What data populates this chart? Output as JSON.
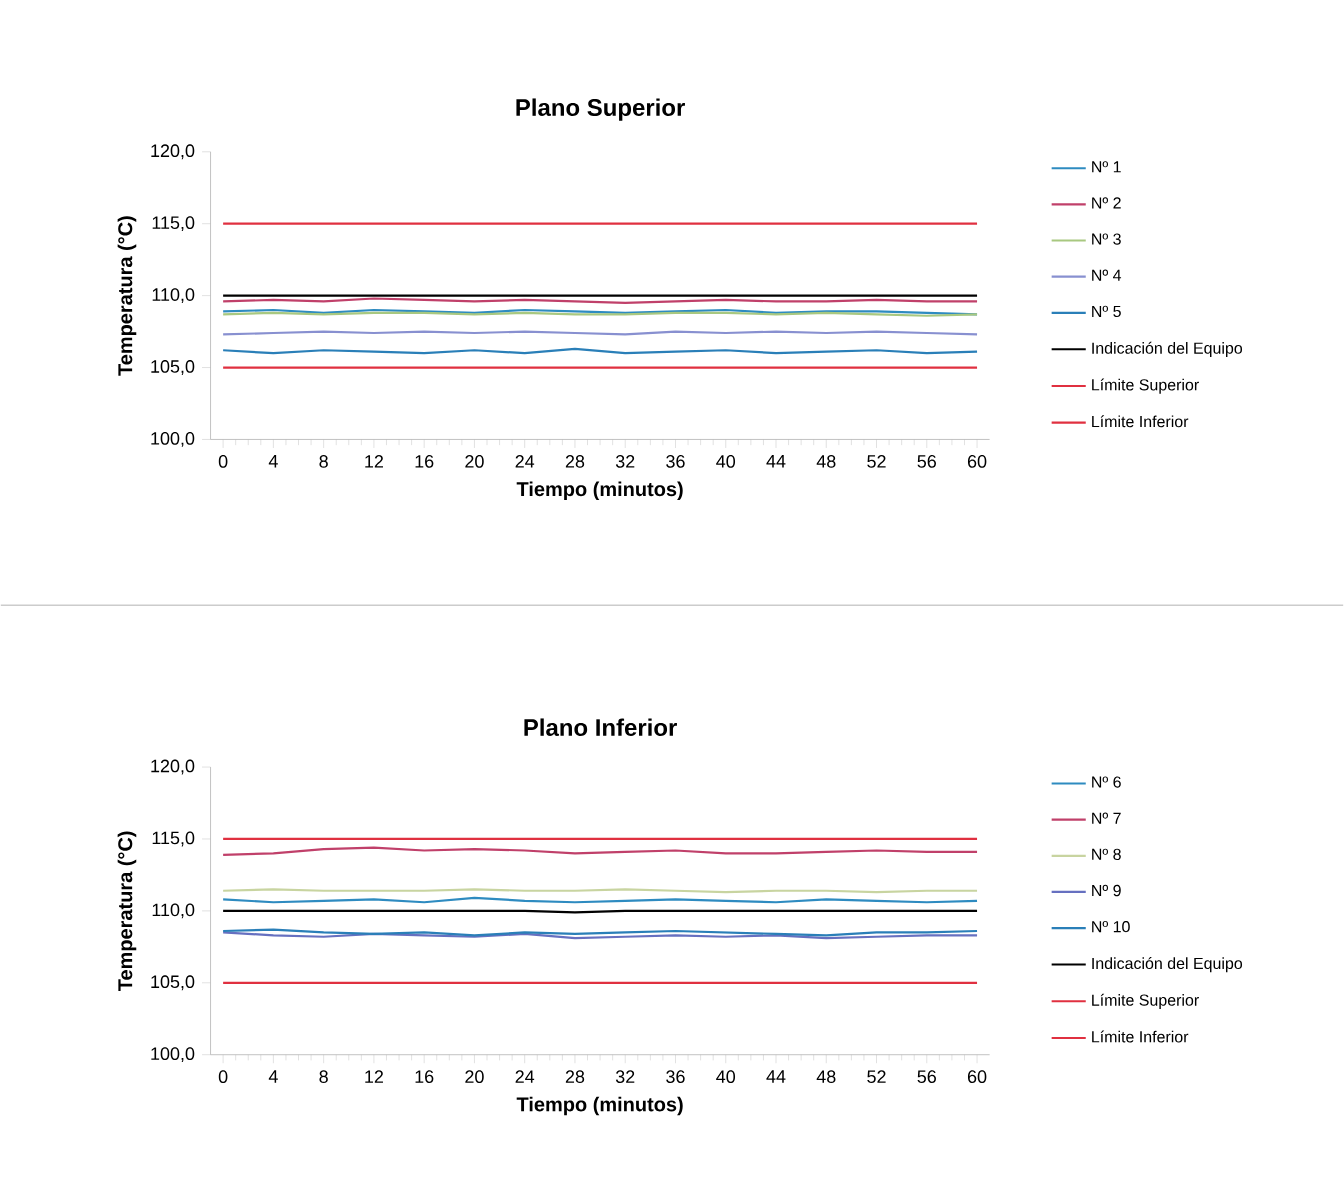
{
  "chart_data": [
    {
      "type": "line",
      "title": "Plano Superior",
      "xlabel": "Tiempo (minutos)",
      "ylabel": "Temperatura (°C)",
      "legend": "right",
      "marker": "none",
      "line_style": "solid",
      "x": [
        0,
        4,
        8,
        12,
        16,
        20,
        24,
        28,
        32,
        36,
        40,
        44,
        48,
        52,
        56,
        60
      ],
      "xlim": [
        -1,
        61
      ],
      "xticks": [
        0,
        4,
        8,
        12,
        16,
        20,
        24,
        28,
        32,
        36,
        40,
        44,
        48,
        52,
        56,
        60
      ],
      "ylim": [
        100,
        120
      ],
      "yticks": [
        {
          "value": 100,
          "label": "100,0"
        },
        {
          "value": 105,
          "label": "105,0"
        },
        {
          "value": 110,
          "label": "110,0"
        },
        {
          "value": 115,
          "label": "115,0"
        },
        {
          "value": 120,
          "label": "120,0"
        }
      ],
      "series": [
        {
          "name": "Nº 1",
          "color": "#2e8bc0",
          "values": [
            108.9,
            109.0,
            108.8,
            109.0,
            108.9,
            108.8,
            109.0,
            108.9,
            108.8,
            108.9,
            109.0,
            108.8,
            108.9,
            108.9,
            108.8,
            108.7
          ]
        },
        {
          "name": "Nº 2",
          "color": "#c0406a",
          "values": [
            109.6,
            109.7,
            109.6,
            109.8,
            109.7,
            109.6,
            109.7,
            109.6,
            109.5,
            109.6,
            109.7,
            109.6,
            109.6,
            109.7,
            109.6,
            109.6
          ]
        },
        {
          "name": "Nº 3",
          "color": "#a8c880",
          "values": [
            108.7,
            108.8,
            108.7,
            108.8,
            108.8,
            108.7,
            108.8,
            108.7,
            108.7,
            108.8,
            108.8,
            108.7,
            108.8,
            108.7,
            108.6,
            108.7
          ]
        },
        {
          "name": "Nº 4",
          "color": "#8890d0",
          "values": [
            107.3,
            107.4,
            107.5,
            107.4,
            107.5,
            107.4,
            107.5,
            107.4,
            107.3,
            107.5,
            107.4,
            107.5,
            107.4,
            107.5,
            107.4,
            107.3
          ]
        },
        {
          "name": "Nº 5",
          "color": "#2a7fb8",
          "values": [
            106.2,
            106.0,
            106.2,
            106.1,
            106.0,
            106.2,
            106.0,
            106.3,
            106.0,
            106.1,
            106.2,
            106.0,
            106.1,
            106.2,
            106.0,
            106.1
          ]
        },
        {
          "name": "Indicación del Equipo",
          "color": "#000000",
          "values": [
            110,
            110,
            110,
            110,
            110,
            110,
            110,
            110,
            110,
            110,
            110,
            110,
            110,
            110,
            110,
            110
          ]
        },
        {
          "name": "Límite Superior",
          "color": "#e03040",
          "values": [
            115,
            115,
            115,
            115,
            115,
            115,
            115,
            115,
            115,
            115,
            115,
            115,
            115,
            115,
            115,
            115
          ]
        },
        {
          "name": "Límite Inferior",
          "color": "#e03040",
          "values": [
            105,
            105,
            105,
            105,
            105,
            105,
            105,
            105,
            105,
            105,
            105,
            105,
            105,
            105,
            105,
            105
          ]
        }
      ]
    },
    {
      "type": "line",
      "title": "Plano Inferior",
      "xlabel": "Tiempo (minutos)",
      "ylabel": "Temperatura (°C)",
      "legend": "right",
      "marker": "none",
      "line_style": "solid",
      "x": [
        0,
        4,
        8,
        12,
        16,
        20,
        24,
        28,
        32,
        36,
        40,
        44,
        48,
        52,
        56,
        60
      ],
      "xlim": [
        -1,
        61
      ],
      "xticks": [
        0,
        4,
        8,
        12,
        16,
        20,
        24,
        28,
        32,
        36,
        40,
        44,
        48,
        52,
        56,
        60
      ],
      "ylim": [
        100,
        120
      ],
      "yticks": [
        {
          "value": 100,
          "label": "100,0"
        },
        {
          "value": 105,
          "label": "105,0"
        },
        {
          "value": 110,
          "label": "110,0"
        },
        {
          "value": 115,
          "label": "115,0"
        },
        {
          "value": 120,
          "label": "120,0"
        }
      ],
      "series": [
        {
          "name": "Nº 6",
          "color": "#2e8bc0",
          "values": [
            110.8,
            110.6,
            110.7,
            110.8,
            110.6,
            110.9,
            110.7,
            110.6,
            110.7,
            110.8,
            110.7,
            110.6,
            110.8,
            110.7,
            110.6,
            110.7
          ]
        },
        {
          "name": "Nº 7",
          "color": "#c0406a",
          "values": [
            113.9,
            114.0,
            114.3,
            114.4,
            114.2,
            114.3,
            114.2,
            114.0,
            114.1,
            114.2,
            114.0,
            114.0,
            114.1,
            114.2,
            114.1,
            114.1
          ]
        },
        {
          "name": "Nº 8",
          "color": "#c8d4a0",
          "values": [
            111.4,
            111.5,
            111.4,
            111.4,
            111.4,
            111.5,
            111.4,
            111.4,
            111.5,
            111.4,
            111.3,
            111.4,
            111.4,
            111.3,
            111.4,
            111.4
          ]
        },
        {
          "name": "Nº 9",
          "color": "#6670c0",
          "values": [
            108.5,
            108.3,
            108.2,
            108.4,
            108.3,
            108.2,
            108.4,
            108.1,
            108.2,
            108.3,
            108.2,
            108.3,
            108.1,
            108.2,
            108.3,
            108.3
          ]
        },
        {
          "name": "Nº 10",
          "color": "#2a7fb8",
          "values": [
            108.6,
            108.7,
            108.5,
            108.4,
            108.5,
            108.3,
            108.5,
            108.4,
            108.5,
            108.6,
            108.5,
            108.4,
            108.3,
            108.5,
            108.5,
            108.6
          ]
        },
        {
          "name": "Indicación del Equipo",
          "color": "#000000",
          "values": [
            110,
            110,
            110,
            110,
            110,
            110,
            110,
            109.9,
            110,
            110,
            110,
            110,
            110,
            110,
            110,
            110
          ]
        },
        {
          "name": "Límite Superior",
          "color": "#e03040",
          "values": [
            115,
            115,
            115,
            115,
            115,
            115,
            115,
            115,
            115,
            115,
            115,
            115,
            115,
            115,
            115,
            115
          ]
        },
        {
          "name": "Límite Inferior",
          "color": "#e03040",
          "values": [
            105,
            105,
            105,
            105,
            105,
            105,
            105,
            105,
            105,
            105,
            105,
            105,
            105,
            105,
            105,
            105
          ]
        }
      ]
    }
  ]
}
